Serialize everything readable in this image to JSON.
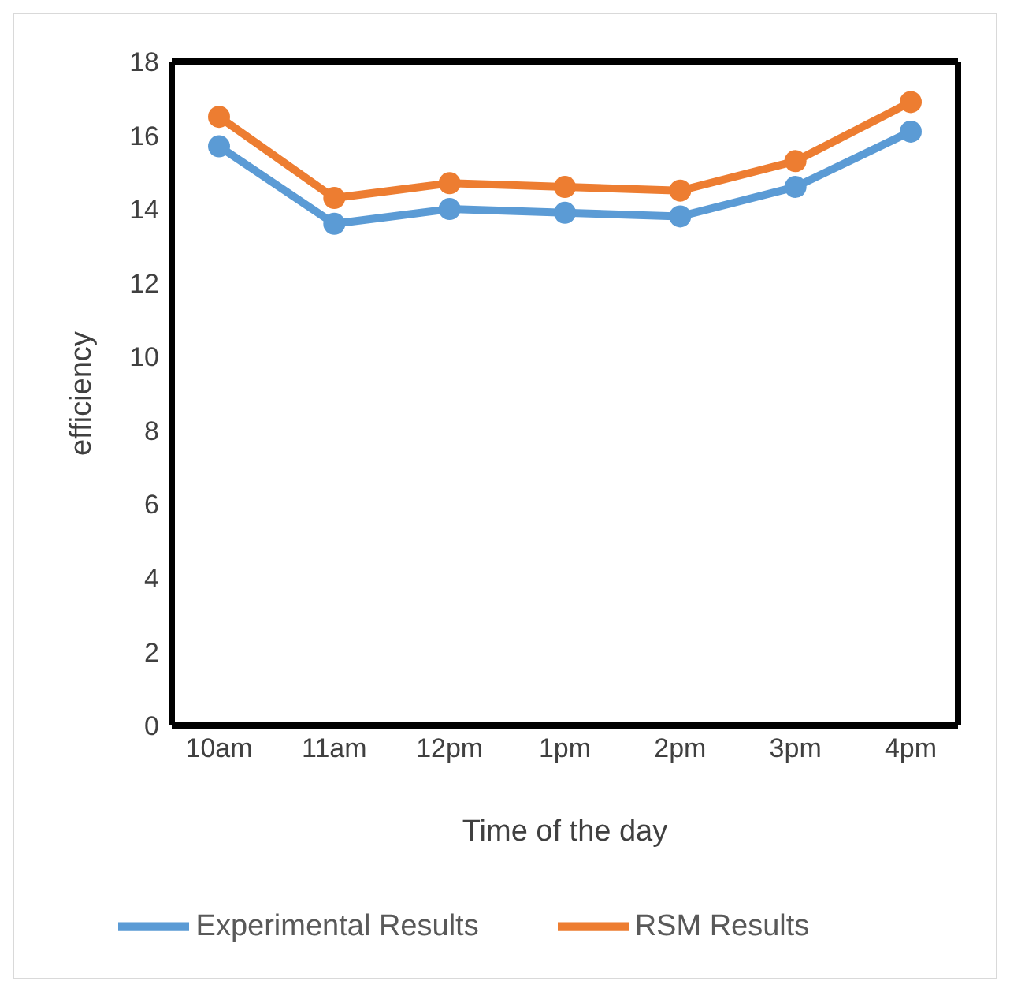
{
  "chart_data": {
    "type": "line",
    "xlabel": "Time of the day",
    "ylabel": "efficiency",
    "categories": [
      "10am",
      "11am",
      "12pm",
      "1pm",
      "2pm",
      "3pm",
      "4pm"
    ],
    "series": [
      {
        "name": "Experimental Results",
        "color": "#5b9bd5",
        "values": [
          15.7,
          13.6,
          14.0,
          13.9,
          13.8,
          14.6,
          16.1
        ]
      },
      {
        "name": "RSM Results",
        "color": "#ed7d31",
        "values": [
          16.5,
          14.3,
          14.7,
          14.6,
          14.5,
          15.3,
          16.9
        ]
      }
    ],
    "ylim": [
      0,
      18
    ],
    "yticks": [
      0,
      2,
      4,
      6,
      8,
      10,
      12,
      14,
      16,
      18
    ],
    "grid": false,
    "legend": "bottom",
    "marker": "circle",
    "line_style": "solid"
  }
}
